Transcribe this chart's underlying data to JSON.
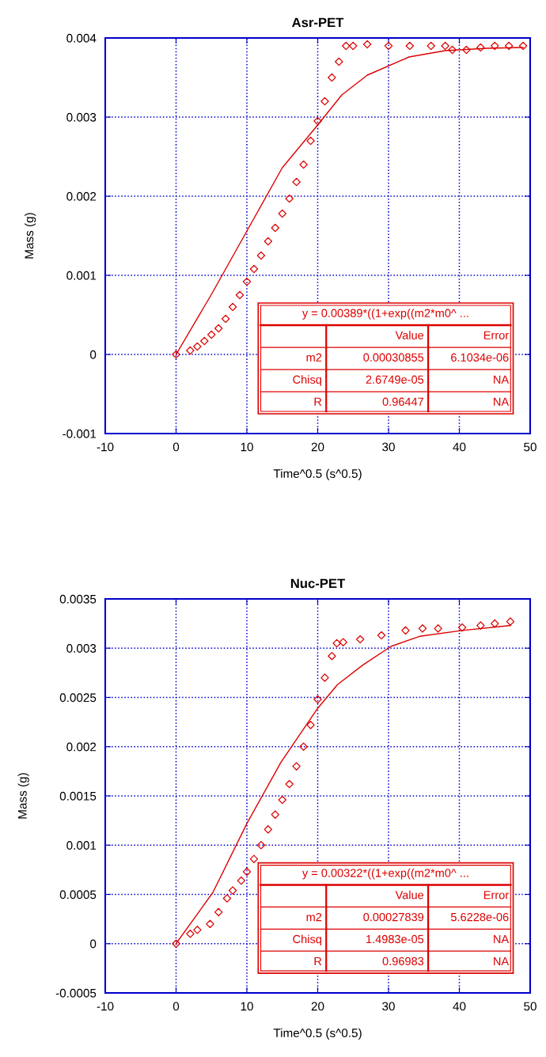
{
  "chart_data": [
    {
      "type": "scatter",
      "title": "Asr-PET",
      "xlabel": "Time^0.5 (s^0.5)",
      "ylabel": "Mass (g)",
      "xlim": [
        -10,
        50
      ],
      "xticks": [
        -10,
        0,
        10,
        20,
        30,
        40,
        50
      ],
      "ylim": [
        -0.001,
        0.004
      ],
      "yticks": [
        -0.001,
        0,
        0.001,
        0.002,
        0.003,
        0.004
      ],
      "grid": true,
      "marker": "diamond",
      "series": [
        {
          "color": "#dd0000",
          "x": [
            0,
            2,
            3,
            4,
            5,
            6,
            7,
            8,
            9,
            10,
            11,
            12,
            13,
            14,
            15,
            16,
            17,
            18,
            19,
            20,
            21,
            22,
            23,
            24,
            25,
            27,
            30,
            33,
            36,
            38,
            39,
            41,
            43,
            45,
            47,
            49
          ],
          "values": [
            0,
            5e-05,
            0.0001,
            0.00017,
            0.00025,
            0.00033,
            0.00045,
            0.0006,
            0.00075,
            0.00092,
            0.00108,
            0.00125,
            0.00143,
            0.0016,
            0.00178,
            0.00197,
            0.00218,
            0.0024,
            0.0027,
            0.00295,
            0.0032,
            0.0035,
            0.0037,
            0.0039,
            0.0039,
            0.00392,
            0.0039,
            0.0039,
            0.0039,
            0.0039,
            0.00385,
            0.00385,
            0.00388,
            0.0039,
            0.0039,
            0.0039
          ]
        },
        {
          "type": "line",
          "color": "#dd0000",
          "marker": "none",
          "x": [
            0,
            5,
            10,
            15,
            20,
            23.4,
            27,
            32.9,
            38,
            44,
            49
          ],
          "values": [
            0,
            0.00076,
            0.00156,
            0.00236,
            0.0029,
            0.00328,
            0.00353,
            0.00376,
            0.00384,
            0.00387,
            0.00388
          ]
        }
      ],
      "annotations": [
        "y = 0.00389*((1+exp((m2*m0^ ...",
        "Value",
        "Error",
        "m2",
        "0.00030855",
        "6.1034e-06",
        "Chisq",
        "2.6749e-05",
        "NA",
        "R",
        "0.96447",
        "NA"
      ]
    },
    {
      "type": "scatter",
      "title": "Nuc-PET",
      "xlabel": "Time^0.5 (s^0.5)",
      "ylabel": "Mass (g)",
      "xlim": [
        -10,
        50
      ],
      "xticks": [
        -10,
        0,
        10,
        20,
        30,
        40,
        50
      ],
      "ylim": [
        -0.0005,
        0.0035
      ],
      "yticks": [
        -0.0005,
        0,
        0.0005,
        0.001,
        0.0015,
        0.002,
        0.0025,
        0.003,
        0.0035
      ],
      "grid": true,
      "marker": "diamond",
      "series": [
        {
          "color": "#dd0000",
          "x": [
            0,
            2,
            3,
            4.8,
            6,
            7.2,
            8,
            9.2,
            10,
            11,
            12,
            13,
            14,
            15,
            16,
            17,
            18,
            19,
            20,
            21,
            22,
            22.7,
            23.6,
            26,
            29,
            32.4,
            34.8,
            37,
            40.4,
            43,
            45,
            47.2
          ],
          "values": [
            0,
            0.0001,
            0.00014,
            0.0002,
            0.00032,
            0.00046,
            0.00054,
            0.00064,
            0.00073,
            0.00086,
            0.001,
            0.00116,
            0.00131,
            0.00146,
            0.00162,
            0.0018,
            0.002,
            0.00222,
            0.00248,
            0.0027,
            0.00292,
            0.00305,
            0.00306,
            0.00309,
            0.00313,
            0.00318,
            0.0032,
            0.0032,
            0.00321,
            0.00323,
            0.00325,
            0.00327
          ]
        },
        {
          "type": "line",
          "color": "#dd0000",
          "marker": "none",
          "x": [
            0,
            5.2,
            10,
            14.8,
            20,
            22.8,
            26.4,
            30.4,
            34.4,
            40.4,
            47.2
          ],
          "values": [
            0,
            0.00052,
            0.00122,
            0.00184,
            0.00239,
            0.00263,
            0.00283,
            0.00302,
            0.00312,
            0.00318,
            0.00323
          ]
        }
      ],
      "annotations": [
        "y = 0.00322*((1+exp((m2*m0^ ...",
        "Value",
        "Error",
        "m2",
        "0.00027839",
        "5.6228e-06",
        "Chisq",
        "1.4983e-05",
        "NA",
        "R",
        "0.96983",
        "NA"
      ]
    }
  ]
}
